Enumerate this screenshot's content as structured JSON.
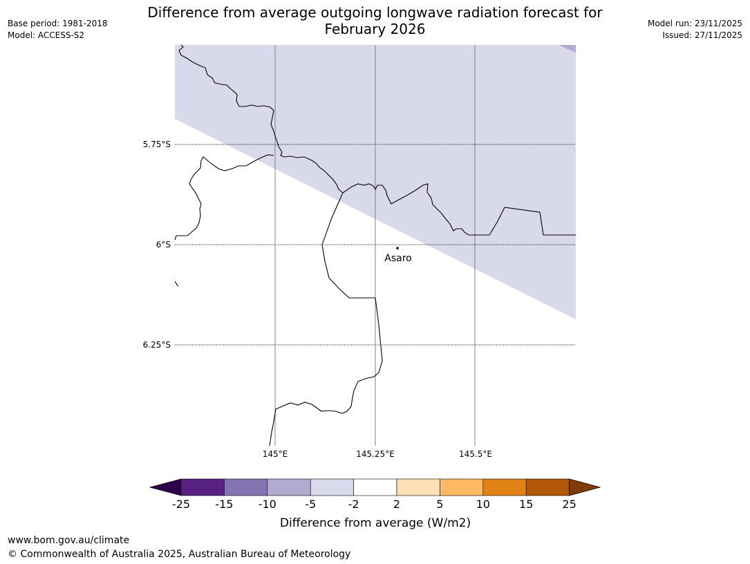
{
  "header": {
    "title_line1": "Difference from average outgoing longwave radiation forecast for",
    "title_line2": "February 2026",
    "base_period": "Base period: 1981-2018",
    "model": "Model: ACCESS-S2",
    "model_run": "Model run: 23/11/2025",
    "issued": "Issued: 27/11/2025"
  },
  "map": {
    "lat_labels": [
      "5.75°S",
      "6°S",
      "6.25°S"
    ],
    "lon_labels": [
      "145°E",
      "145.25°E",
      "145.5°E"
    ],
    "place": {
      "name": "Asaro",
      "lon": 145.3,
      "lat": -6.01
    },
    "anomaly_region_category": "-5 to -2",
    "colors": {
      "anomaly_fill": "#d8d9ea",
      "anomaly_fill_dark": "#b1aad1",
      "border": "#000000",
      "grid": "#808080"
    }
  },
  "colorbar": {
    "label": "Difference from average (W/m2)",
    "ticks": [
      "-25",
      "-15",
      "-10",
      "-5",
      "-2",
      "2",
      "5",
      "10",
      "15",
      "25"
    ],
    "colors": [
      "#562183",
      "#8373b0",
      "#b1aad1",
      "#d8d9ea",
      "#ffffff",
      "#fee0b6",
      "#fdb863",
      "#e08214",
      "#b35806"
    ],
    "under_color": "#2d004b",
    "over_color": "#7f3b08"
  },
  "footer": {
    "url": "www.bom.gov.au/climate",
    "copyright": "© Commonwealth of Australia 2025, Australian Bureau of Meteorology"
  }
}
